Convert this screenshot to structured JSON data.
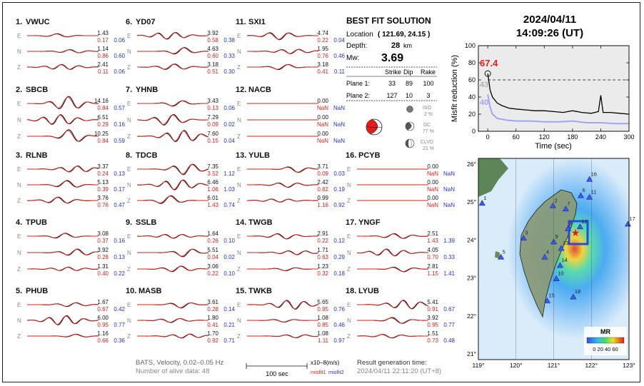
{
  "header": {
    "date": "2024/04/11",
    "time": "14:09:26  (UT)"
  },
  "solution": {
    "title": "BEST FIT SOLUTION",
    "location_label": "Location",
    "location_value": "( 121.69,  24.15 )",
    "depth_label": "Depth:",
    "depth_value": "28",
    "depth_unit": "km",
    "mw_label": "Mw:",
    "mw_value": "3.69",
    "col_strike": "Strike",
    "col_dip": "Dip",
    "col_rake": "Rake",
    "plane1_label": "Plane 1:",
    "plane1": [
      "33",
      "89",
      "100"
    ],
    "plane2_label": "Plane 2:",
    "plane2": [
      "127",
      "10",
      "3"
    ],
    "iso_label": "ISO",
    "iso_value": "2 %",
    "dc_label": "DC",
    "dc_value": "77 %",
    "clvd_label": "CLVD",
    "clvd_value": "21 %"
  },
  "stations": [
    {
      "idx": "1.",
      "name": "VWUC",
      "amp": [
        "1.43",
        "1.14",
        "2.41"
      ],
      "m1": [
        "0.17",
        "0.86",
        "0.11"
      ],
      "m2": [
        "0.06",
        "0.60",
        "0.06"
      ]
    },
    {
      "idx": "2.",
      "name": "SBCB",
      "amp": [
        "14.16",
        "6.51",
        "10.25"
      ],
      "m1": [
        "0.84",
        "0.29",
        "0.84"
      ],
      "m2": [
        "0.57",
        "0.16",
        "0.59"
      ]
    },
    {
      "idx": "3.",
      "name": "RLNB",
      "amp": [
        "3.37",
        "5.13",
        "3.76"
      ],
      "m1": [
        "0.24",
        "0.39",
        "0.76"
      ],
      "m2": [
        "0.13",
        "0.17",
        "0.47"
      ]
    },
    {
      "idx": "4.",
      "name": "TPUB",
      "amp": [
        "3.08",
        "3.92",
        "1.31"
      ],
      "m1": [
        "0.37",
        "0.28",
        "0.40"
      ],
      "m2": [
        "0.16",
        "0.13",
        "0.22"
      ]
    },
    {
      "idx": "5.",
      "name": "PHUB",
      "amp": [
        "1.67",
        "6.00",
        "1.16"
      ],
      "m1": [
        "0.67",
        "0.95",
        "0.66"
      ],
      "m2": [
        "0.42",
        "0.77",
        "0.36"
      ]
    },
    {
      "idx": "6.",
      "name": "YD07",
      "amp": [
        "3.92",
        "4.63",
        "3.18"
      ],
      "m1": [
        "0.58",
        "0.60",
        "0.51"
      ],
      "m2": [
        "0.38",
        "0.33",
        "0.30"
      ]
    },
    {
      "idx": "7.",
      "name": "YHNB",
      "amp": [
        "3.43",
        "7.29",
        "7.60"
      ],
      "m1": [
        "0.13",
        "0.09",
        "0.15"
      ],
      "m2": [
        "0.06",
        "0.02",
        "0.04"
      ]
    },
    {
      "idx": "8.",
      "name": "TDCB",
      "amp": [
        "7.35",
        "6.46",
        "6.01"
      ],
      "m1": [
        "3.52",
        "1.06",
        "1.43"
      ],
      "m2": [
        "1.12",
        "1.03",
        "0.74"
      ]
    },
    {
      "idx": "9.",
      "name": "SSLB",
      "amp": [
        "1.64",
        "5.51",
        "3.06"
      ],
      "m1": [
        "0.26",
        "0.04",
        "0.22"
      ],
      "m2": [
        "0.10",
        "0.02",
        "0.10"
      ]
    },
    {
      "idx": "10.",
      "name": "MASB",
      "amp": [
        "3.61",
        "1.80",
        "1.70"
      ],
      "m1": [
        "0.28",
        "0.41",
        "0.92"
      ],
      "m2": [
        "0.14",
        "0.21",
        "0.71"
      ]
    },
    {
      "idx": "11.",
      "name": "SXI1",
      "amp": [
        "4.74",
        "1.95",
        "3.18"
      ],
      "m1": [
        "0.22",
        "0.76",
        "0.41"
      ],
      "m2": [
        "0.04",
        "0.46",
        "0.11"
      ]
    },
    {
      "idx": "12.",
      "name": "NACB",
      "amp": [
        "0.00",
        "0.00",
        "0.00"
      ],
      "m1": [
        "NaN",
        "NaN",
        "NaN"
      ],
      "m2": [
        "NaN",
        "NaN",
        "NaN"
      ]
    },
    {
      "idx": "13.",
      "name": "YULB",
      "amp": [
        "3.71",
        "2.42",
        "0.99"
      ],
      "m1": [
        "0.09",
        "0.62",
        "1.16"
      ],
      "m2": [
        "0.03",
        "0.19",
        "0.92"
      ]
    },
    {
      "idx": "14.",
      "name": "TWGB",
      "amp": [
        "2.91",
        "1.71",
        "1.23"
      ],
      "m1": [
        "0.22",
        "0.63",
        "0.32"
      ],
      "m2": [
        "0.12",
        "0.29",
        "0.18"
      ]
    },
    {
      "idx": "15.",
      "name": "TWKB",
      "amp": [
        "5.65",
        "1.08",
        "1.08"
      ],
      "m1": [
        "0.95",
        "0.85",
        "1.11"
      ],
      "m2": [
        "0.76",
        "0.46",
        "0.97"
      ]
    },
    {
      "idx": "16.",
      "name": "PCYB",
      "amp": [
        "0.00",
        "0.00",
        "0.00"
      ],
      "m1": [
        "NaN",
        "NaN",
        "NaN"
      ],
      "m2": [
        "NaN",
        "NaN",
        "NaN"
      ]
    },
    {
      "idx": "17.",
      "name": "YNGF",
      "amp": [
        "2.51",
        "4.05",
        "2.81"
      ],
      "m1": [
        "1.43",
        "0.70",
        "1.15"
      ],
      "m2": [
        "1.39",
        "0.33",
        "1.41"
      ]
    },
    {
      "idx": "18.",
      "name": "LYUB",
      "amp": [
        "5.41",
        "3.92",
        "1.51"
      ],
      "m1": [
        "0.91",
        "0.95",
        "0.73"
      ],
      "m2": [
        "0.67",
        "0.77",
        "0.48"
      ]
    }
  ],
  "components": [
    "E",
    "N",
    "Z"
  ],
  "footer": {
    "line1": "BATS, Velocity, 0.02–0.05 Hz",
    "line2": "Number of alive data: 48",
    "scale_label": "100 sec",
    "unit": "x10−8(m/s)",
    "misfit1": "misfit1",
    "misfit2": "misfit2",
    "gen_label": "Result generation time:",
    "gen_time": "2024/04/11 22:11:20 (UT+8)"
  },
  "chart_data": {
    "type": "line",
    "xlabel": "Time (sec)",
    "ylabel": "Misfit reduction (%)",
    "xlim": [
      -20,
      300
    ],
    "ylim": [
      0,
      100
    ],
    "xticks": [
      "0",
      "60",
      "120",
      "180",
      "240",
      "300"
    ],
    "yticks": [
      "0",
      "20",
      "40",
      "60",
      "80",
      "100"
    ],
    "annotations": [
      "67.4",
      "43",
      "40"
    ],
    "threshold": 60,
    "series": [
      {
        "values": [
          [
            0,
            67.4
          ],
          [
            5,
            48
          ],
          [
            10,
            40
          ],
          [
            20,
            33
          ],
          [
            30,
            30
          ],
          [
            45,
            27
          ],
          [
            60,
            26
          ],
          [
            80,
            25
          ],
          [
            100,
            24
          ],
          [
            120,
            24
          ],
          [
            140,
            23
          ],
          [
            160,
            22
          ],
          [
            180,
            24
          ],
          [
            200,
            22
          ],
          [
            220,
            21
          ],
          [
            235,
            23
          ],
          [
            240,
            42
          ],
          [
            245,
            22
          ],
          [
            260,
            22
          ],
          [
            280,
            21
          ],
          [
            300,
            20
          ]
        ]
      },
      {
        "values": [
          [
            0,
            43
          ],
          [
            5,
            28
          ],
          [
            10,
            20
          ],
          [
            20,
            15
          ],
          [
            40,
            13
          ],
          [
            60,
            12
          ],
          [
            90,
            12
          ],
          [
            120,
            11
          ],
          [
            150,
            11
          ],
          [
            180,
            12
          ],
          [
            210,
            10
          ],
          [
            240,
            10
          ],
          [
            270,
            9
          ],
          [
            300,
            9
          ]
        ]
      }
    ]
  },
  "map": {
    "lat_ticks": [
      "26°",
      "25°",
      "24°",
      "23°",
      "22°",
      "21°"
    ],
    "lon_ticks": [
      "119°",
      "120°",
      "121°",
      "122°",
      "123°"
    ],
    "station_labels": [
      "1",
      "2",
      "3",
      "4",
      "5",
      "6",
      "7",
      "8",
      "9",
      "10",
      "11",
      "12",
      "13",
      "14",
      "15",
      "16",
      "17",
      "18"
    ],
    "legend_title": "MR",
    "legend_ticks": "0 20 40 60"
  }
}
